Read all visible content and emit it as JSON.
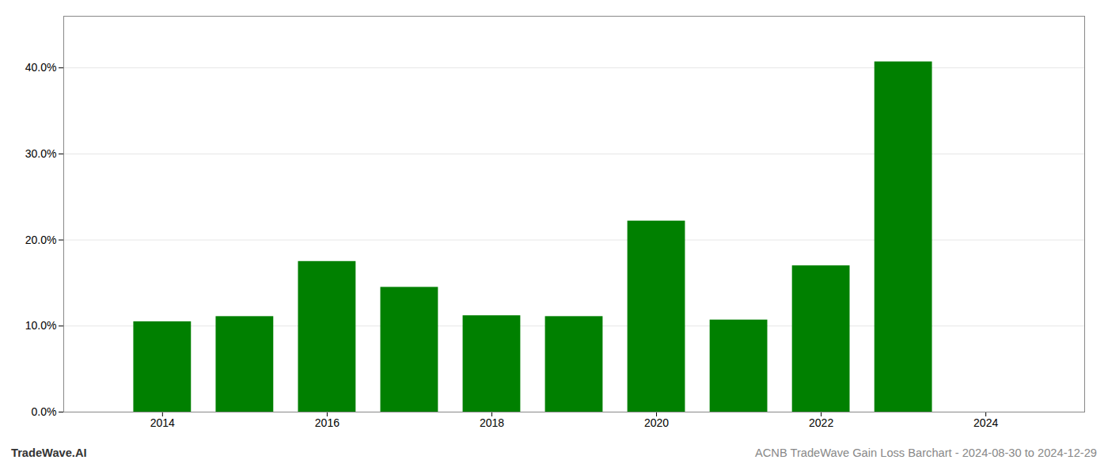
{
  "chart_data": {
    "type": "bar",
    "title": "ACNB TradeWave Gain Loss Barchart - 2024-08-30 to 2024-12-29",
    "annotations": [
      "TradeWave.AI"
    ],
    "x": [
      2014,
      2015,
      2016,
      2017,
      2018,
      2019,
      2020,
      2021,
      2022,
      2023
    ],
    "values": [
      0.105,
      0.111,
      0.175,
      0.145,
      0.112,
      0.111,
      0.222,
      0.107,
      0.17,
      0.407
    ],
    "color": "#008000",
    "xlim": [
      2012.8,
      2025.2
    ],
    "xticks": [
      2014,
      2016,
      2018,
      2020,
      2022,
      2024
    ],
    "ylim": [
      0,
      0.46
    ],
    "yticks": [
      {
        "value": 0.0,
        "label": "0.0%"
      },
      {
        "value": 0.1,
        "label": "10.0%"
      },
      {
        "value": 0.2,
        "label": "20.0%"
      },
      {
        "value": 0.3,
        "label": "30.0%"
      },
      {
        "value": 0.4,
        "label": "40.0%"
      }
    ],
    "grid": true
  }
}
